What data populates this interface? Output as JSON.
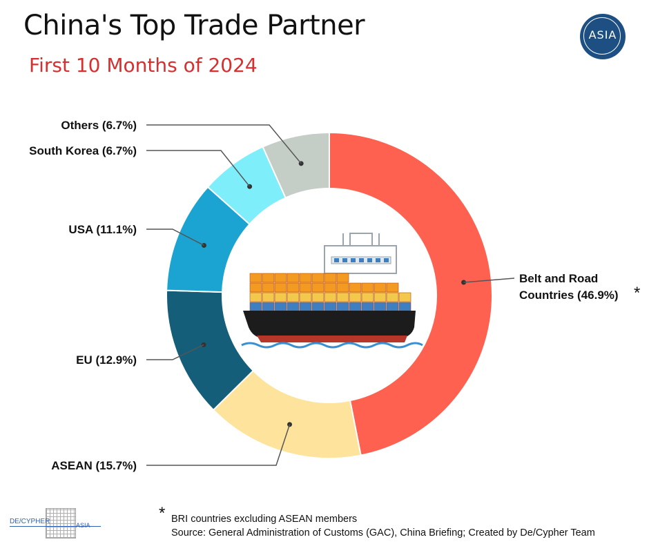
{
  "header": {
    "title": "China's Top Trade Partner",
    "subtitle": "First 10 Months of 2024",
    "badge_text": "ASIA"
  },
  "chart_data": {
    "type": "pie",
    "donut": true,
    "categories": [
      "Belt and Road Countries (46.9%)",
      "ASEAN (15.7%)",
      "EU (12.9%)",
      "USA (11.1%)",
      "South Korea (6.7%)",
      "Others (6.7%)"
    ],
    "values": [
      46.9,
      15.7,
      12.9,
      11.1,
      6.7,
      6.7
    ],
    "colors": [
      "#ff6150",
      "#fde39b",
      "#155e7a",
      "#1ba3d1",
      "#7eeefa",
      "#c4cdc6"
    ],
    "label_lines": [
      [
        "Belt and Road",
        "Countries (46.9%)"
      ],
      [
        "ASEAN (15.7%)"
      ],
      [
        "EU (12.9%)"
      ],
      [
        "USA (11.1%)"
      ],
      [
        "South Korea (6.7%)"
      ],
      [
        "Others (6.7%)"
      ]
    ],
    "asterisk": "*",
    "center_icon": "cargo-ship-icon"
  },
  "footnote": {
    "star": "*",
    "line1": "BRI countries excluding ASEAN members",
    "line2": "Source: General Administration of Customs (GAC), China Briefing; Created by De/Cypher Team"
  },
  "logo": {
    "word1": "DE/CYPHER",
    "word2": "ASIA"
  }
}
